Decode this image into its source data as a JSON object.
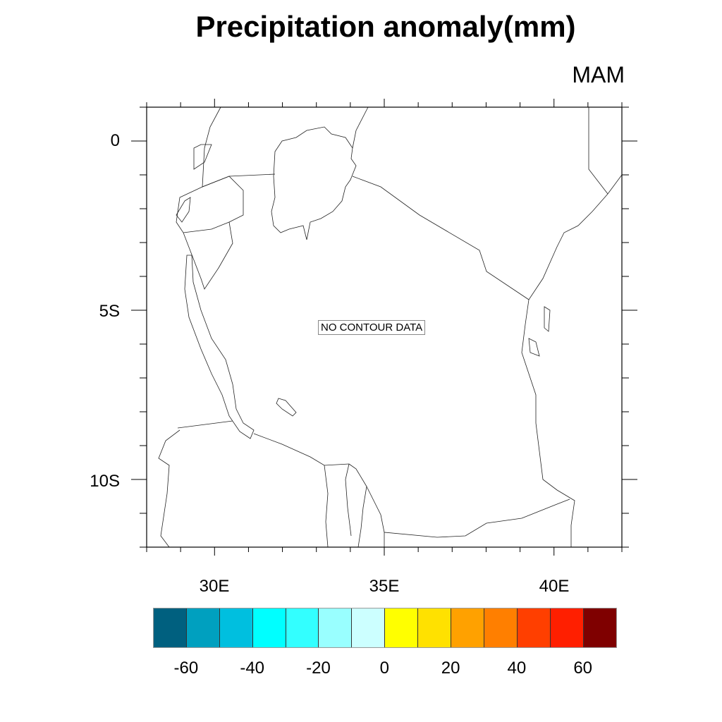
{
  "title": "Precipitation anomaly(mm)",
  "season": "MAM",
  "no_data_label": "NO CONTOUR DATA",
  "map": {
    "lon_range": [
      28,
      42
    ],
    "lat_range": [
      -12,
      1
    ],
    "y_tick_labels": [
      "0",
      "5S",
      "10S"
    ],
    "x_tick_labels": [
      "30E",
      "35E",
      "40E"
    ]
  },
  "colorbar": {
    "colors": [
      "#00607F",
      "#00A0BF",
      "#00BFDF",
      "#00FFFF",
      "#33FFFF",
      "#99FFFF",
      "#CCFFFF",
      "#FFFF00",
      "#FFE100",
      "#FFA100",
      "#FF7F00",
      "#FF3F00",
      "#FF1F00",
      "#7F0000"
    ],
    "labels": [
      "-60",
      "-40",
      "-20",
      "0",
      "20",
      "40",
      "60"
    ]
  }
}
